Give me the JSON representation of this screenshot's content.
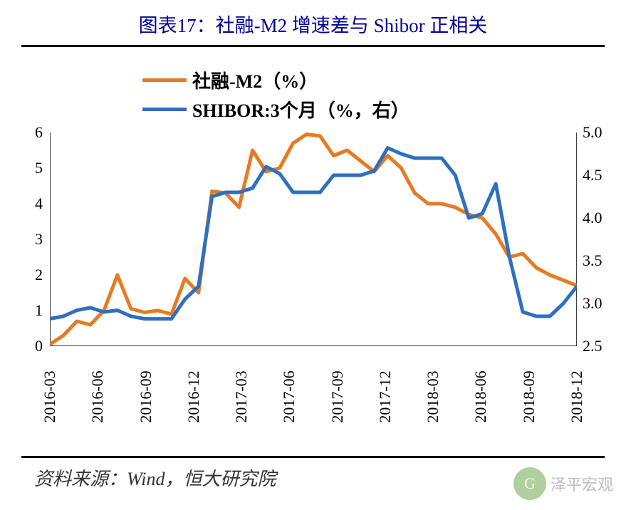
{
  "title": "图表17：社融-M2 增速差与 Shibor 正相关",
  "source": "资料来源：Wind，恒大研究院",
  "watermark": "泽平宏观",
  "chart": {
    "type": "line",
    "background_color": "#ffffff",
    "legend": {
      "position": "top-center",
      "font_size": 26,
      "font_weight": "bold",
      "items": [
        {
          "label": "社融-M2（%）",
          "color": "#e87a22"
        },
        {
          "label": "SHIBOR:3个月（%，右）",
          "color": "#2e6fbf"
        }
      ]
    },
    "x_axis": {
      "labels": [
        "2016-03",
        "2016-06",
        "2016-09",
        "2016-12",
        "2017-03",
        "2017-06",
        "2017-09",
        "2017-12",
        "2018-03",
        "2018-06",
        "2018-09",
        "2018-12"
      ],
      "rotation": -90,
      "font_size": 22,
      "tick_length": 6,
      "axis_color": "#000000"
    },
    "y_axis_left": {
      "min": 0,
      "max": 6,
      "step": 1,
      "ticks": [
        0,
        1,
        2,
        3,
        4,
        5,
        6
      ],
      "font_size": 22
    },
    "y_axis_right": {
      "min": 2.5,
      "max": 5.0,
      "step": 0.5,
      "ticks": [
        2.5,
        3.0,
        3.5,
        4.0,
        4.5,
        5.0
      ],
      "font_size": 22
    },
    "line_width": 5,
    "series": [
      {
        "name": "社融-M2（%）",
        "axis": "left",
        "color": "#e87a22",
        "data": [
          0.05,
          0.3,
          0.7,
          0.6,
          1.0,
          2.0,
          1.05,
          0.95,
          1.0,
          0.9,
          1.9,
          1.5,
          4.35,
          4.3,
          3.9,
          5.5,
          4.9,
          5.0,
          5.7,
          5.95,
          5.9,
          5.35,
          5.5,
          5.2,
          4.9,
          5.35,
          5.0,
          4.3,
          4.0,
          4.0,
          3.9,
          3.7,
          3.6,
          3.15,
          2.5,
          2.6,
          2.2,
          2.0,
          1.85,
          1.7
        ]
      },
      {
        "name": "SHIBOR:3个月（%，右）",
        "axis": "right",
        "color": "#2e6fbf",
        "data": [
          2.82,
          2.85,
          2.92,
          2.95,
          2.9,
          2.92,
          2.85,
          2.82,
          2.82,
          2.82,
          3.05,
          3.2,
          4.25,
          4.3,
          4.3,
          4.35,
          4.6,
          4.52,
          4.3,
          4.3,
          4.3,
          4.5,
          4.5,
          4.5,
          4.55,
          4.82,
          4.75,
          4.7,
          4.7,
          4.7,
          4.5,
          4.0,
          4.05,
          4.4,
          3.55,
          2.9,
          2.85,
          2.85,
          3.0,
          3.2
        ]
      }
    ]
  }
}
